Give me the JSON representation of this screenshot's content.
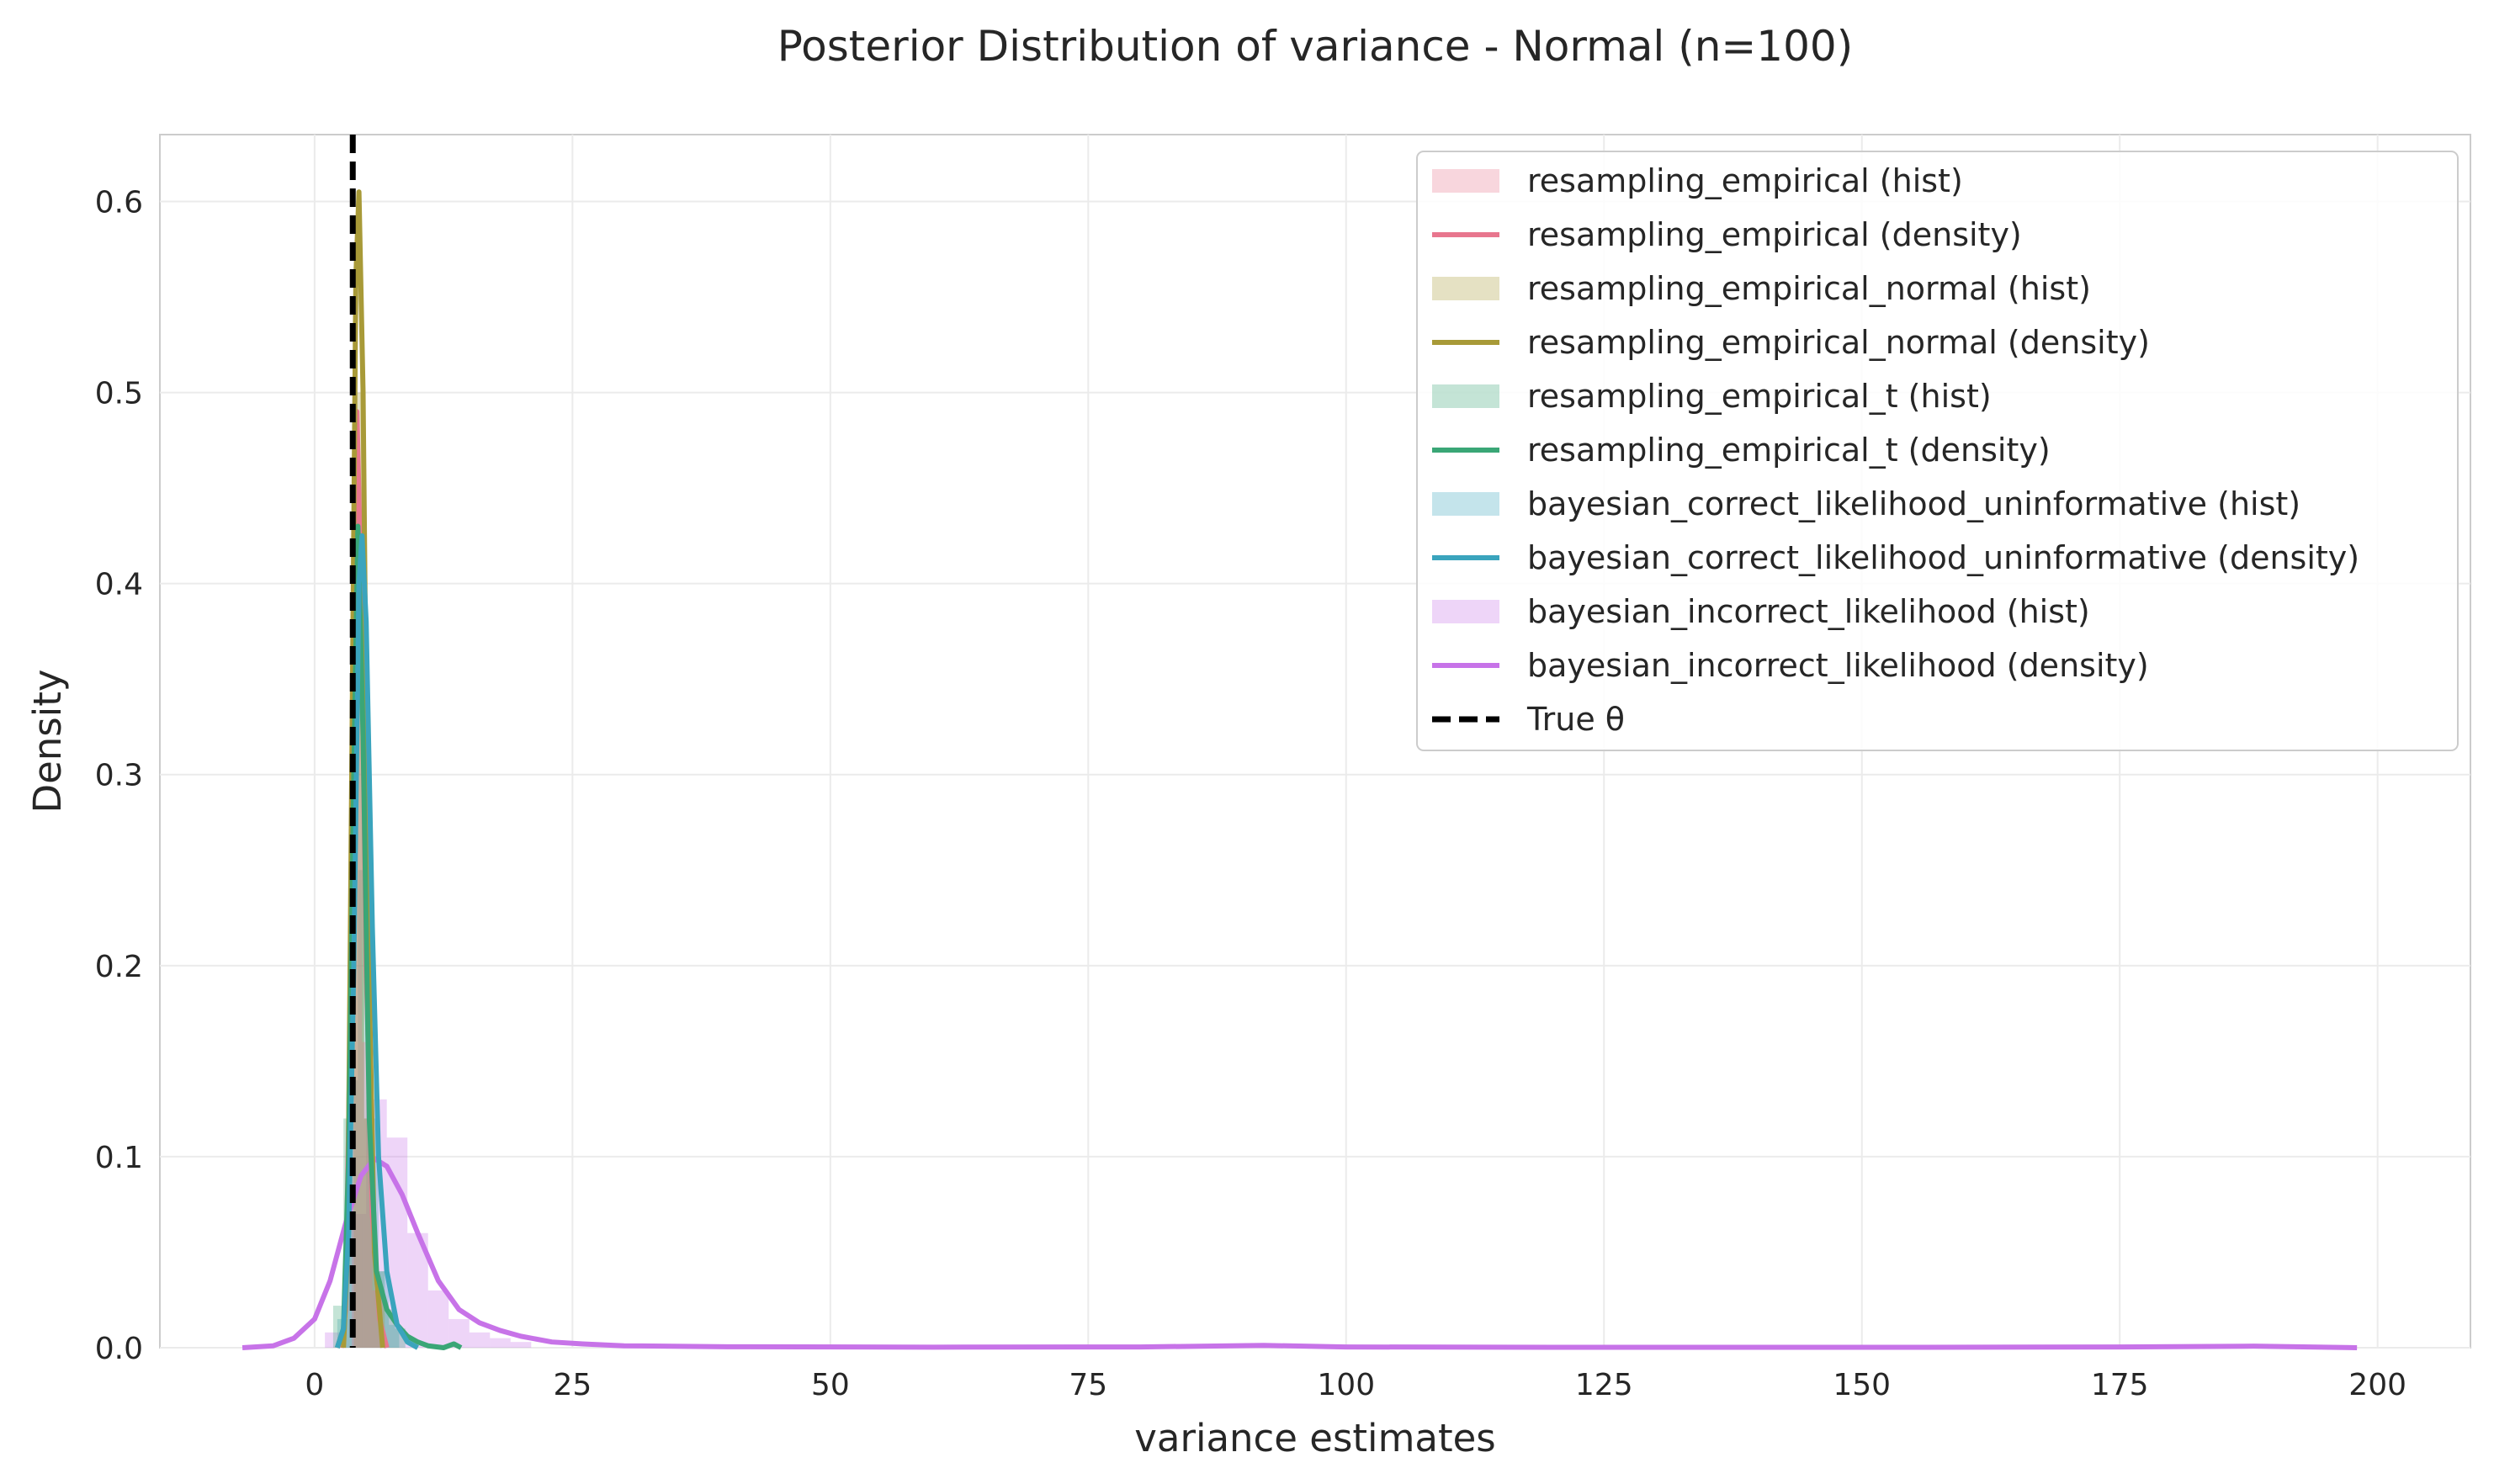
{
  "chart_data": {
    "type": "histogram+density",
    "title": "Posterior Distribution of variance - Normal (n=100)",
    "xlabel": "variance estimates",
    "ylabel": "Density",
    "xlim": [
      -15,
      209
    ],
    "ylim": [
      0,
      0.635
    ],
    "xticks": [
      0,
      25,
      50,
      75,
      100,
      125,
      150,
      175,
      200
    ],
    "yticks": [
      0.0,
      0.1,
      0.2,
      0.3,
      0.4,
      0.5,
      0.6
    ],
    "xtick_labels": [
      "0",
      "25",
      "50",
      "75",
      "100",
      "125",
      "150",
      "175",
      "200"
    ],
    "ytick_labels": [
      "0.0",
      "0.1",
      "0.2",
      "0.3",
      "0.4",
      "0.5",
      "0.6"
    ],
    "grid": true,
    "legend_position": "top-right",
    "true_theta": 3.7,
    "series": [
      {
        "name": "resampling_empirical",
        "color": "#e8768e",
        "hist": {
          "bins": [
            [
              3.6,
              4.6,
              0.35
            ],
            [
              4.6,
              5.6,
              0.16
            ],
            [
              5.6,
              6.6,
              0.03
            ]
          ]
        },
        "density": [
          [
            2.6,
            0
          ],
          [
            3.0,
            0.02
          ],
          [
            3.4,
            0.15
          ],
          [
            3.8,
            0.4
          ],
          [
            4.1,
            0.49
          ],
          [
            4.5,
            0.4
          ],
          [
            5.0,
            0.2
          ],
          [
            5.6,
            0.07
          ],
          [
            6.3,
            0.015
          ],
          [
            7.0,
            0.0
          ]
        ]
      },
      {
        "name": "resampling_empirical_normal",
        "color": "#a89a38",
        "hist": {
          "bins": [
            [
              3.8,
              4.8,
              0.5
            ],
            [
              4.8,
              5.8,
              0.12
            ],
            [
              5.8,
              6.8,
              0.03
            ]
          ]
        },
        "density": [
          [
            2.8,
            0
          ],
          [
            3.2,
            0.05
          ],
          [
            3.6,
            0.3
          ],
          [
            4.0,
            0.56
          ],
          [
            4.3,
            0.605
          ],
          [
            4.7,
            0.5
          ],
          [
            5.2,
            0.22
          ],
          [
            5.8,
            0.05
          ],
          [
            6.6,
            0.0
          ]
        ]
      },
      {
        "name": "resampling_empirical_t",
        "color": "#3aa676",
        "hist": {
          "bins": [
            [
              1.8,
              2.8,
              0.022
            ],
            [
              2.8,
              3.8,
              0.12
            ],
            [
              3.8,
              4.8,
              0.4
            ],
            [
              4.8,
              5.8,
              0.12
            ],
            [
              5.8,
              6.8,
              0.04
            ],
            [
              6.8,
              7.8,
              0.02
            ],
            [
              7.8,
              8.8,
              0.01
            ]
          ]
        },
        "density": [
          [
            2.2,
            0
          ],
          [
            2.8,
            0.01
          ],
          [
            3.3,
            0.1
          ],
          [
            3.8,
            0.3
          ],
          [
            4.2,
            0.43
          ],
          [
            4.7,
            0.32
          ],
          [
            5.3,
            0.12
          ],
          [
            6.0,
            0.04
          ],
          [
            7.0,
            0.02
          ],
          [
            8.0,
            0.012
          ],
          [
            9.0,
            0.006
          ],
          [
            10.0,
            0.003
          ],
          [
            11.0,
            0.001
          ],
          [
            12.5,
            0.0
          ],
          [
            13.5,
            0.002
          ],
          [
            14.2,
            0.0
          ]
        ]
      },
      {
        "name": "bayesian_correct_likelihood_uninformative",
        "color": "#3aa4bd",
        "hist": {
          "bins": [
            [
              2.2,
              3.2,
              0.015
            ],
            [
              3.2,
              4.2,
              0.14
            ],
            [
              4.2,
              5.2,
              0.25
            ],
            [
              5.2,
              6.2,
              0.12
            ],
            [
              6.2,
              7.2,
              0.04
            ],
            [
              7.2,
              8.2,
              0.012
            ]
          ]
        },
        "density": [
          [
            2.2,
            0
          ],
          [
            2.8,
            0.01
          ],
          [
            3.3,
            0.06
          ],
          [
            3.8,
            0.2
          ],
          [
            4.3,
            0.4
          ],
          [
            4.6,
            0.425
          ],
          [
            5.0,
            0.38
          ],
          [
            5.6,
            0.22
          ],
          [
            6.2,
            0.1
          ],
          [
            7.0,
            0.04
          ],
          [
            8.0,
            0.012
          ],
          [
            9.0,
            0.003
          ],
          [
            10.0,
            0.0
          ]
        ]
      },
      {
        "name": "bayesian_incorrect_likelihood",
        "color": "#c773e8",
        "hist": {
          "bins": [
            [
              1.0,
              3.0,
              0.008
            ],
            [
              3.0,
              5.0,
              0.07
            ],
            [
              5.0,
              7.0,
              0.13
            ],
            [
              7.0,
              9.0,
              0.11
            ],
            [
              9.0,
              11.0,
              0.06
            ],
            [
              11.0,
              13.0,
              0.03
            ],
            [
              13.0,
              15.0,
              0.015
            ],
            [
              15.0,
              17.0,
              0.008
            ],
            [
              17.0,
              19.0,
              0.005
            ],
            [
              19.0,
              21.0,
              0.003
            ]
          ]
        },
        "density": [
          [
            -7,
            0
          ],
          [
            -4,
            0.001
          ],
          [
            -2,
            0.005
          ],
          [
            0,
            0.015
          ],
          [
            1.5,
            0.035
          ],
          [
            3.0,
            0.065
          ],
          [
            4.5,
            0.09
          ],
          [
            5.8,
            0.099
          ],
          [
            7.0,
            0.095
          ],
          [
            8.5,
            0.08
          ],
          [
            10,
            0.06
          ],
          [
            12,
            0.035
          ],
          [
            14,
            0.02
          ],
          [
            16,
            0.013
          ],
          [
            18,
            0.009
          ],
          [
            20,
            0.006
          ],
          [
            23,
            0.003
          ],
          [
            26,
            0.002
          ],
          [
            30,
            0.001
          ],
          [
            40,
            0.0005
          ],
          [
            60,
            0.0003
          ],
          [
            80,
            0.0004
          ],
          [
            92,
            0.0012
          ],
          [
            100,
            0.0004
          ],
          [
            120,
            0.0002
          ],
          [
            150,
            0.0002
          ],
          [
            175,
            0.0004
          ],
          [
            188,
            0.0008
          ],
          [
            198,
            0.0
          ]
        ]
      }
    ],
    "legend_entries": [
      "resampling_empirical (hist)",
      "resampling_empirical (density)",
      "resampling_empirical_normal (hist)",
      "resampling_empirical_normal (density)",
      "resampling_empirical_t (hist)",
      "resampling_empirical_t (density)",
      "bayesian_correct_likelihood_uninformative (hist)",
      "bayesian_correct_likelihood_uninformative (density)",
      "bayesian_incorrect_likelihood (hist)",
      "bayesian_incorrect_likelihood (density)",
      "True θ"
    ]
  }
}
